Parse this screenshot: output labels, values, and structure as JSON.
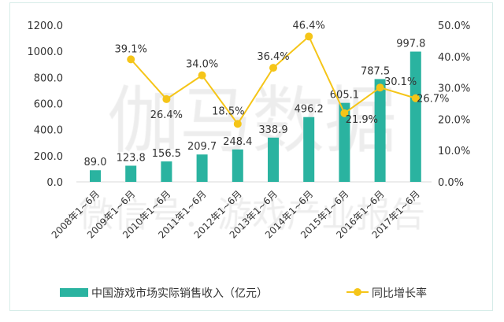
{
  "chart_data": {
    "type": "bar+line",
    "categories": [
      "2008年1~6月",
      "2009年1~6月",
      "2010年1~6月",
      "2011年1~6月",
      "2012年1~6月",
      "2013年1~6月",
      "2014年1~6月",
      "2015年1~6月",
      "2016年1~6月",
      "2017年1~6月"
    ],
    "series": [
      {
        "name": "中国游戏市场实际销售收入（亿元）",
        "type": "bar",
        "axis": "left",
        "color": "#2ab3a0",
        "values": [
          89.0,
          123.8,
          156.5,
          209.7,
          248.4,
          338.9,
          496.2,
          605.1,
          787.5,
          997.8
        ],
        "labels": [
          "89.0",
          "123.8",
          "156.5",
          "209.7",
          "248.4",
          "338.9",
          "496.2",
          "605.1",
          "787.5",
          "997.8"
        ]
      },
      {
        "name": "同比增长率",
        "type": "line",
        "axis": "right",
        "color": "#f5c518",
        "values": [
          null,
          39.1,
          26.4,
          34.0,
          18.5,
          36.4,
          46.4,
          21.9,
          30.1,
          26.7
        ],
        "labels": [
          "",
          "39.1%",
          "26.4%",
          "34.0%",
          "18.5%",
          "36.4%",
          "46.4%",
          "21.9%",
          "30.1%",
          "26.7%"
        ]
      }
    ],
    "left_axis": {
      "ylim": [
        0,
        1200
      ],
      "ticks": [
        "0.0",
        "200.0",
        "400.0",
        "600.0",
        "800.0",
        "1000.0",
        "1200.0"
      ]
    },
    "right_axis": {
      "ylim": [
        0,
        50
      ],
      "ticks": [
        "0.0%",
        "10.0%",
        "20.0%",
        "30.0%",
        "40.0%",
        "50.0%"
      ]
    },
    "grid": false,
    "legend": "bottom"
  },
  "watermark": {
    "main": "伽马数据",
    "sub": "微信号：游戏产业报告"
  }
}
